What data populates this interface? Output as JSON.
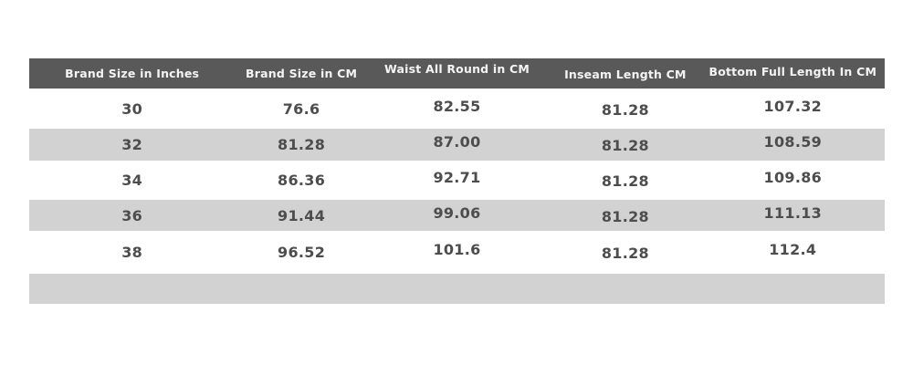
{
  "chart_data": {
    "type": "table",
    "columns": [
      "Brand Size in Inches",
      "Brand Size in CM",
      "Waist All Round in CM",
      "Inseam Length CM",
      "Bottom Full Length In CM"
    ],
    "rows": [
      [
        "30",
        "76.6",
        "82.55",
        "81.28",
        "107.32"
      ],
      [
        "32",
        "81.28",
        "87.00",
        "81.28",
        "108.59"
      ],
      [
        "34",
        "86.36",
        "92.71",
        "81.28",
        "109.86"
      ],
      [
        "36",
        "91.44",
        "99.06",
        "81.28",
        "111.13"
      ],
      [
        "38",
        "96.52",
        "101.6",
        "81.28",
        "112.4"
      ],
      [
        "",
        "",
        "",
        "",
        ""
      ]
    ]
  },
  "colors": {
    "header_bg": "#595959",
    "header_text": "#f4f4f4",
    "stripe_bg": "#d2d2d2",
    "row_bg": "#ffffff",
    "cell_text": "#4d4d4d",
    "page_bg": "#ffffff"
  }
}
